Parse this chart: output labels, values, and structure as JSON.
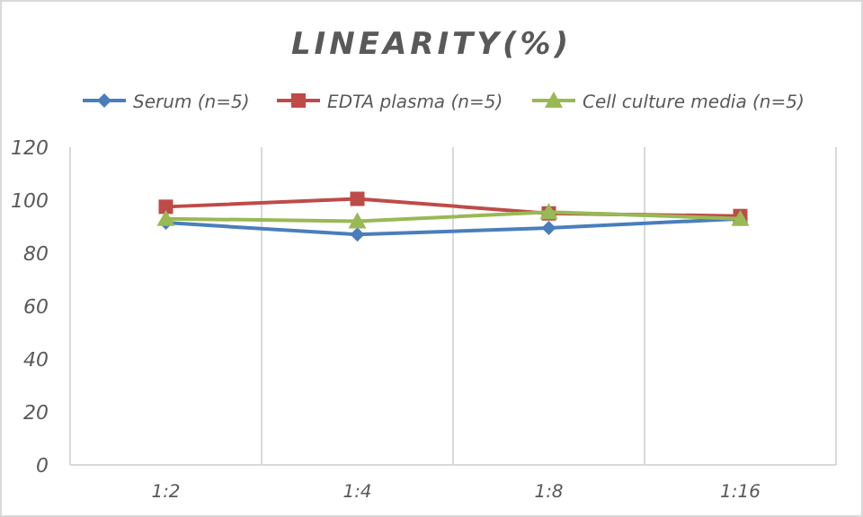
{
  "chart_data": {
    "type": "line",
    "title": "LINEARITY(%)",
    "categories": [
      "1:2",
      "1:4",
      "1:8",
      "1:16"
    ],
    "series": [
      {
        "name": "Serum (n=5)",
        "color": "#4a7ebb",
        "marker": "diamond",
        "values": [
          91.5,
          87,
          89.5,
          93
        ]
      },
      {
        "name": "EDTA plasma (n=5)",
        "color": "#be4b48",
        "marker": "square",
        "values": [
          97.5,
          100.5,
          95,
          94
        ]
      },
      {
        "name": "Cell culture media (n=5)",
        "color": "#98b954",
        "marker": "triangle",
        "values": [
          93,
          92,
          95.5,
          93
        ]
      }
    ],
    "ylim": [
      0,
      120
    ],
    "yticks": [
      0,
      20,
      40,
      60,
      80,
      100,
      120
    ],
    "grid": "x",
    "legend": "top"
  }
}
